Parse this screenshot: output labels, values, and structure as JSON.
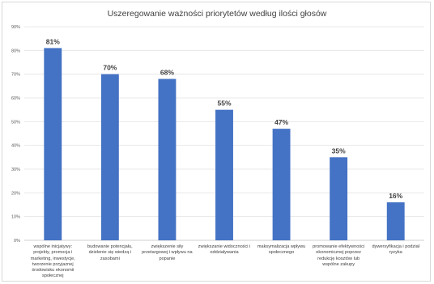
{
  "chart_data": {
    "type": "bar",
    "title": "Uszeregowanie ważności priorytetów według ilości głosów",
    "xlabel": "",
    "ylabel": "",
    "ylim": [
      0,
      90
    ],
    "yticks": [
      "0%",
      "10%",
      "20%",
      "30%",
      "40%",
      "50%",
      "60%",
      "70%",
      "80%",
      "90%"
    ],
    "grid": true,
    "categories": [
      "wspólne inicjatywy: projekty, promocja i marketing, inwestycje, tworzenie przyjaznej środowisku ekonomii społecznej",
      "budowanie potencjału, dzielenie się wiedzą i zasobami",
      "zwiększenie siły przetargowej i wpływu na popanie",
      "zwiększanie widoczności i oddziaływania",
      "maksymalizacja wpływu społecznego",
      "promowanie efektywności ekonomicznej poprzez redukcję kosztów lub wspólne zakupy",
      "dywersyfikacja i podział ryzyka"
    ],
    "values": [
      81,
      70,
      68,
      55,
      47,
      35,
      16
    ],
    "data_labels": [
      "81%",
      "70%",
      "68%",
      "55%",
      "47%",
      "35%",
      "16%"
    ],
    "bar_color": "#4472c4"
  }
}
